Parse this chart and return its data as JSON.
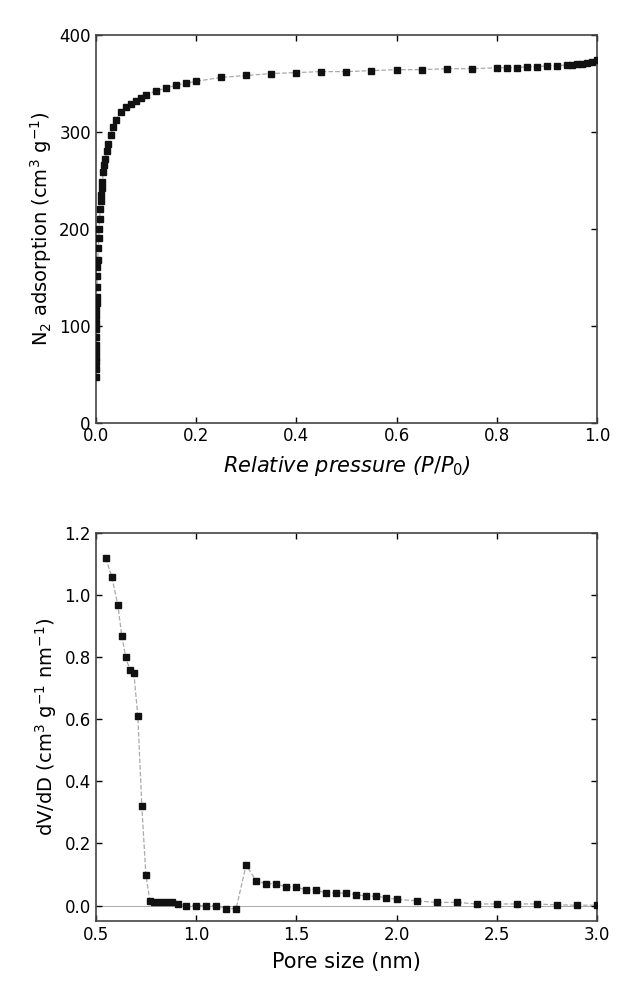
{
  "plot1": {
    "xlabel": "Relative pressure ($P/P_0$)",
    "ylabel": "N$_2$ adsorption (cm$^3$ g$^{-1}$)",
    "xlim": [
      0,
      1.0
    ],
    "ylim": [
      0,
      400
    ],
    "xticks": [
      0,
      0.2,
      0.4,
      0.6,
      0.8,
      1.0
    ],
    "yticks": [
      0,
      100,
      200,
      300,
      400
    ],
    "x": [
      5e-05,
      0.0001,
      0.0002,
      0.0003,
      0.0004,
      0.0005,
      0.0007,
      0.0009,
      0.0011,
      0.0013,
      0.0015,
      0.0018,
      0.002,
      0.0025,
      0.003,
      0.0035,
      0.004,
      0.005,
      0.006,
      0.007,
      0.008,
      0.009,
      0.01,
      0.011,
      0.012,
      0.013,
      0.015,
      0.017,
      0.019,
      0.022,
      0.025,
      0.03,
      0.035,
      0.04,
      0.05,
      0.06,
      0.07,
      0.08,
      0.09,
      0.1,
      0.12,
      0.14,
      0.16,
      0.18,
      0.2,
      0.25,
      0.3,
      0.35,
      0.4,
      0.45,
      0.5,
      0.55,
      0.6,
      0.65,
      0.7,
      0.75,
      0.8,
      0.82,
      0.84,
      0.86,
      0.88,
      0.9,
      0.92,
      0.94,
      0.95,
      0.96,
      0.97,
      0.98,
      0.99,
      1.0
    ],
    "y": [
      47,
      55,
      62,
      68,
      74,
      80,
      88,
      96,
      103,
      110,
      116,
      123,
      129,
      140,
      151,
      160,
      168,
      180,
      190,
      200,
      210,
      220,
      228,
      235,
      242,
      248,
      258,
      266,
      272,
      280,
      287,
      297,
      305,
      312,
      320,
      325,
      329,
      332,
      335,
      338,
      342,
      345,
      348,
      350,
      352,
      356,
      358,
      360,
      361,
      362,
      362,
      363,
      364,
      364,
      365,
      365,
      366,
      366,
      366,
      367,
      367,
      368,
      368,
      369,
      369,
      370,
      370,
      371,
      372,
      374
    ]
  },
  "plot2": {
    "xlabel": "Pore size (nm)",
    "ylabel": "dV/dD (cm$^3$ g$^{-1}$ nm$^{-1}$)",
    "xlim": [
      0.5,
      3.0
    ],
    "ylim": [
      -0.05,
      1.2
    ],
    "xticks": [
      0.5,
      1.0,
      1.5,
      2.0,
      2.5,
      3.0
    ],
    "yticks": [
      0.0,
      0.2,
      0.4,
      0.6,
      0.8,
      1.0,
      1.2
    ],
    "x": [
      0.55,
      0.58,
      0.61,
      0.63,
      0.65,
      0.67,
      0.69,
      0.71,
      0.73,
      0.75,
      0.77,
      0.79,
      0.82,
      0.85,
      0.88,
      0.91,
      0.95,
      1.0,
      1.05,
      1.1,
      1.15,
      1.2,
      1.25,
      1.3,
      1.35,
      1.4,
      1.45,
      1.5,
      1.55,
      1.6,
      1.65,
      1.7,
      1.75,
      1.8,
      1.85,
      1.9,
      1.95,
      2.0,
      2.1,
      2.2,
      2.3,
      2.4,
      2.5,
      2.6,
      2.7,
      2.8,
      2.9,
      3.0
    ],
    "y": [
      1.12,
      1.06,
      0.97,
      0.87,
      0.8,
      0.76,
      0.75,
      0.61,
      0.32,
      0.1,
      0.015,
      0.01,
      0.01,
      0.01,
      0.01,
      0.005,
      0.0,
      0.0,
      0.0,
      0.0,
      -0.01,
      -0.01,
      0.13,
      0.08,
      0.07,
      0.07,
      0.06,
      0.06,
      0.05,
      0.05,
      0.04,
      0.04,
      0.04,
      0.035,
      0.03,
      0.03,
      0.025,
      0.02,
      0.015,
      0.01,
      0.01,
      0.005,
      0.005,
      0.005,
      0.005,
      0.002,
      0.001,
      0.001
    ]
  },
  "marker": "s",
  "marker_size": 5,
  "line_style": "--",
  "line_color": "#aaaaaa",
  "marker_color": "#111111",
  "spine_color": "#444444",
  "label_fontsize": 14,
  "tick_fontsize": 12,
  "xlabel_fontsize": 15
}
